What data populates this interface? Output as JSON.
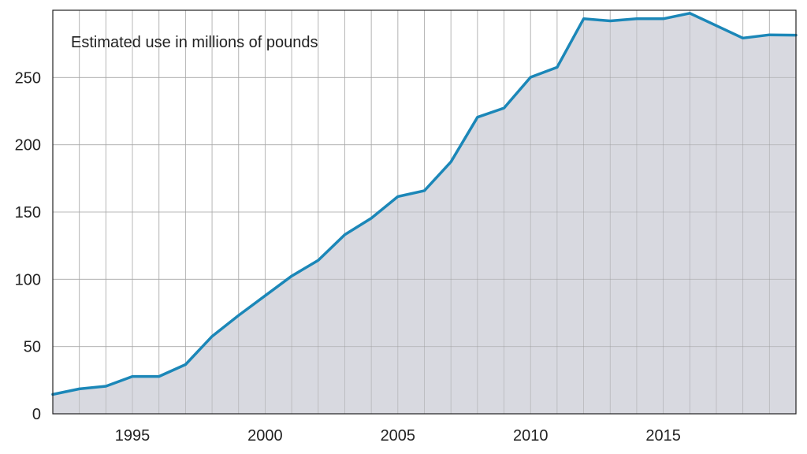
{
  "chart_data": {
    "type": "area",
    "title": "Estimated use in millions of pounds",
    "xlabel": "",
    "ylabel": "",
    "xlim": [
      1992,
      2020
    ],
    "ylim": [
      0,
      300
    ],
    "x_ticks": [
      1995,
      2000,
      2005,
      2010,
      2015
    ],
    "x_tick_labels": [
      "1995",
      "2000",
      "2005",
      "2010",
      "2015"
    ],
    "y_ticks": [
      0,
      50,
      100,
      150,
      200,
      250
    ],
    "y_tick_labels": [
      "0",
      "50",
      "100",
      "150",
      "200",
      "250"
    ],
    "grid": true,
    "x_gridlines": [
      1993,
      1994,
      1995,
      1996,
      1997,
      1998,
      1999,
      2000,
      2001,
      2002,
      2003,
      2004,
      2005,
      2006,
      2007,
      2008,
      2009,
      2010,
      2011,
      2012,
      2013,
      2014,
      2015,
      2016,
      2017,
      2018,
      2019
    ],
    "line_color": "#1b87b8",
    "fill_color": "#d8d9e0",
    "x": [
      1992,
      1993,
      1994,
      1995,
      1996,
      1997,
      1998,
      1999,
      2000,
      2001,
      2002,
      2003,
      2004,
      2005,
      2006,
      2007,
      2008,
      2009,
      2010,
      2011,
      2012,
      2013,
      2014,
      2015,
      2016,
      2017,
      2018,
      2019,
      2020
    ],
    "values": [
      14.4,
      18.5,
      20.5,
      27.8,
      27.8,
      36.6,
      57.6,
      73.2,
      87.8,
      102.4,
      114.1,
      133.2,
      145.4,
      161.5,
      165.9,
      187.3,
      220.5,
      227.3,
      250.2,
      257.6,
      293.7,
      292.1,
      293.7,
      293.7,
      297.8,
      288.5,
      279.3,
      281.7,
      281.5
    ]
  }
}
